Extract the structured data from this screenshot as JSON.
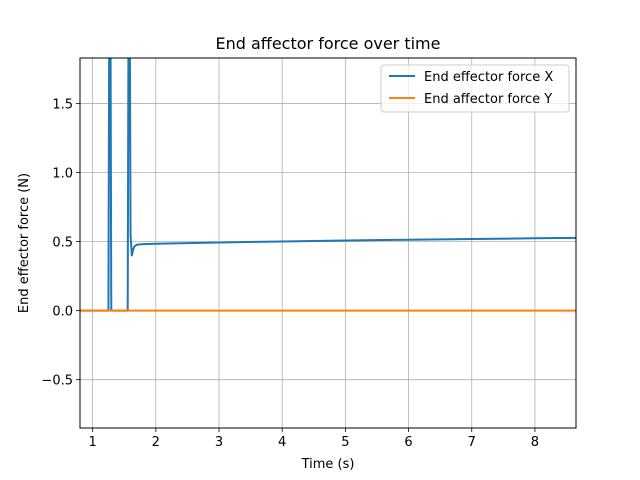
{
  "chart_data": {
    "type": "line",
    "title": "End affector force over time",
    "xlabel": "Time (s)",
    "ylabel": "End effector force (N)",
    "xlim": [
      0.8,
      8.65
    ],
    "ylim": [
      -0.85,
      1.83
    ],
    "xticks": [
      1,
      2,
      3,
      4,
      5,
      6,
      7,
      8
    ],
    "xtick_labels": [
      "1",
      "2",
      "3",
      "4",
      "5",
      "6",
      "7",
      "8"
    ],
    "yticks": [
      -0.5,
      0.0,
      0.5,
      1.0,
      1.5
    ],
    "ytick_labels": [
      "−0.5",
      "0.0",
      "0.5",
      "1.0",
      "1.5"
    ],
    "grid": true,
    "legend_position": "top-right",
    "series": [
      {
        "name": "End effector force X",
        "color": "#1f77b4",
        "x": [
          0.8,
          1.25,
          1.265,
          1.28,
          1.295,
          1.31,
          1.555,
          1.57,
          1.585,
          1.6,
          1.62,
          1.64,
          1.66,
          1.7,
          1.8,
          2.0,
          3.0,
          4.0,
          5.0,
          6.0,
          7.0,
          8.0,
          8.65
        ],
        "y": [
          0.0,
          0.0,
          2.5,
          2.5,
          0.0,
          0.0,
          0.0,
          2.5,
          2.5,
          0.55,
          0.4,
          0.44,
          0.465,
          0.478,
          0.482,
          0.485,
          0.494,
          0.501,
          0.508,
          0.514,
          0.519,
          0.524,
          0.527
        ]
      },
      {
        "name": "End affector force Y",
        "color": "#ff7f0e",
        "x": [
          0.8,
          8.65
        ],
        "y": [
          0.0,
          0.0
        ]
      }
    ]
  }
}
